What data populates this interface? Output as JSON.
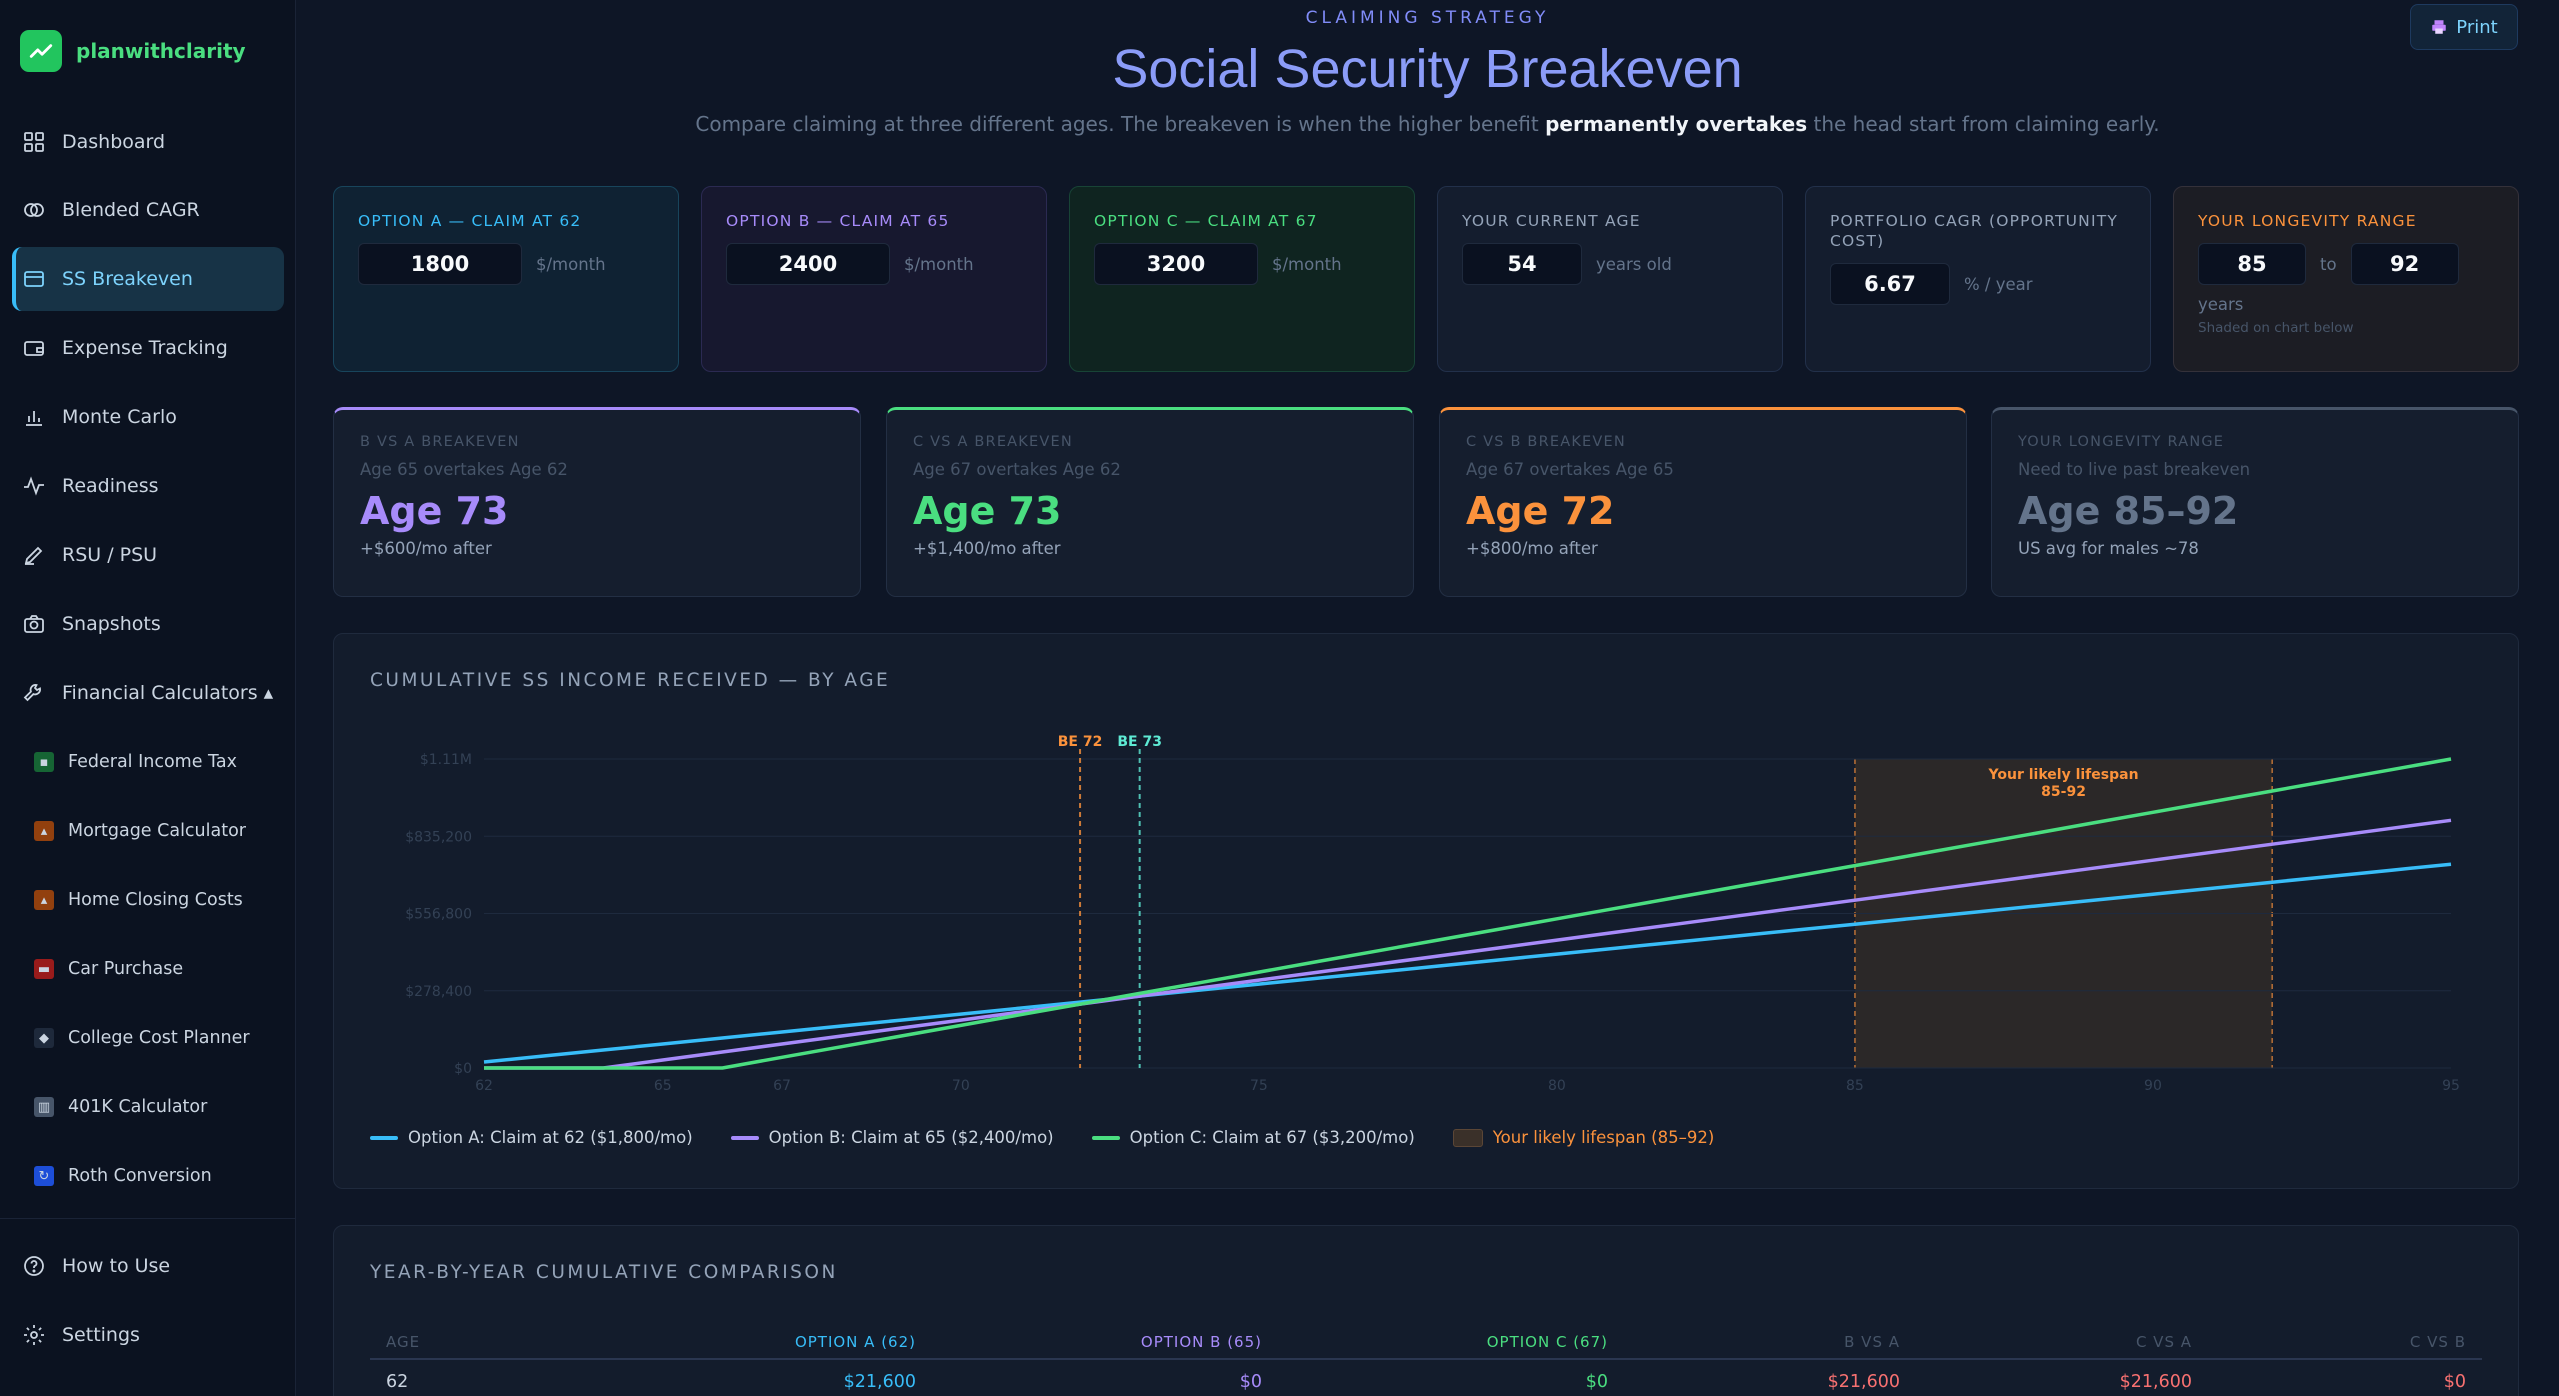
{
  "brand": {
    "name": "planwithclarity"
  },
  "nav": [
    {
      "label": "Dashboard",
      "icon": "grid-icon"
    },
    {
      "label": "Blended CAGR",
      "icon": "circles-icon"
    },
    {
      "label": "SS Breakeven",
      "icon": "card-icon"
    },
    {
      "label": "Expense Tracking",
      "icon": "wallet-icon"
    },
    {
      "label": "Monte Carlo",
      "icon": "bar-chart-icon"
    },
    {
      "label": "Readiness",
      "icon": "activity-icon"
    },
    {
      "label": "RSU / PSU",
      "icon": "pen-icon"
    },
    {
      "label": "Snapshots",
      "icon": "camera-icon"
    },
    {
      "label": "Financial Calculators ▴",
      "icon": "wrench-icon"
    }
  ],
  "subnav": [
    {
      "label": "Federal Income Tax",
      "emoji": "💵",
      "color": "#16a34a"
    },
    {
      "label": "Mortgage Calculator",
      "emoji": "🏠",
      "color": "#b45309"
    },
    {
      "label": "Home Closing Costs",
      "emoji": "🏡",
      "color": "#b45309"
    },
    {
      "label": "Car Purchase",
      "emoji": "🚗",
      "color": "#dc2626"
    },
    {
      "label": "College Cost Planner",
      "emoji": "🎓",
      "color": "#334155"
    },
    {
      "label": "401K Calculator",
      "emoji": "🏦",
      "color": "#64748b"
    },
    {
      "label": "Roth Conversion",
      "emoji": "🔄",
      "color": "#2563eb"
    }
  ],
  "footer_nav": [
    {
      "label": "How to Use",
      "icon": "help-icon"
    },
    {
      "label": "Settings",
      "icon": "settings-icon"
    }
  ],
  "header": {
    "eyebrow": "CLAIMING STRATEGY",
    "title": "Social Security Breakeven",
    "subtitle_pre": "Compare claiming at three different ages. The breakeven is when the higher benefit ",
    "subtitle_bold": "permanently overtakes",
    "subtitle_post": " the head start from claiming early.",
    "print_label": "Print"
  },
  "inputs": {
    "a": {
      "label": "OPTION A — CLAIM AT 62",
      "value": "1800",
      "unit": "$/month",
      "color": "#38bdf8"
    },
    "b": {
      "label": "OPTION B — CLAIM AT 65",
      "value": "2400",
      "unit": "$/month",
      "color": "#a78bfa"
    },
    "c": {
      "label": "OPTION C — CLAIM AT 67",
      "value": "3200",
      "unit": "$/month",
      "color": "#4ade80"
    },
    "age": {
      "label": "YOUR CURRENT AGE",
      "value": "54",
      "unit": "years old"
    },
    "cagr": {
      "label": "PORTFOLIO CAGR (OPPORTUNITY COST)",
      "value": "6.67",
      "unit": "% / year"
    },
    "longevity": {
      "label": "YOUR LONGEVITY RANGE",
      "from": "85",
      "to_label": "to",
      "to": "92",
      "unit": "years",
      "note": "Shaded on chart below",
      "color": "#fb923c"
    }
  },
  "breakevens": [
    {
      "label": "B VS A BREAKEVEN",
      "sub": "Age 65 overtakes Age 62",
      "value": "Age 73",
      "note": "+$600/mo after",
      "color": "#a78bfa"
    },
    {
      "label": "C VS A BREAKEVEN",
      "sub": "Age 67 overtakes Age 62",
      "value": "Age 73",
      "note": "+$1,400/mo after",
      "color": "#4ade80"
    },
    {
      "label": "C VS B BREAKEVEN",
      "sub": "Age 67 overtakes Age 65",
      "value": "Age 72",
      "note": "+$800/mo after",
      "color": "#fb923c"
    },
    {
      "label": "YOUR LONGEVITY RANGE",
      "sub": "Need to live past breakeven",
      "value": "Age 85–92",
      "note": "US avg for males ~78",
      "color": "#64748b"
    }
  ],
  "chart_panel_title": "CUMULATIVE SS INCOME RECEIVED — BY AGE",
  "chart_data": {
    "type": "line",
    "xlim": [
      62,
      95
    ],
    "ylim": [
      0,
      1113600
    ],
    "x_ticks": [
      62,
      65,
      67,
      70,
      75,
      80,
      85,
      90,
      95
    ],
    "y_ticks": [
      0,
      278400,
      556800,
      835200,
      1113600
    ],
    "y_tick_labels": [
      "$0",
      "$278,400",
      "$556,800",
      "$835,200",
      "$1.11M"
    ],
    "series": [
      {
        "name": "Option A: Claim at 62 ($1,800/mo)",
        "claim_age": 62,
        "monthly": 1800,
        "color": "#38bdf8"
      },
      {
        "name": "Option B: Claim at 65 ($2,400/mo)",
        "claim_age": 65,
        "monthly": 2400,
        "color": "#a78bfa"
      },
      {
        "name": "Option C: Claim at 67 ($3,200/mo)",
        "claim_age": 67,
        "monthly": 3200,
        "color": "#4ade80"
      }
    ],
    "x_points": [
      62,
      63,
      64,
      65,
      66,
      67,
      68,
      69,
      70,
      71,
      72,
      73,
      74,
      75,
      76,
      77,
      78,
      79,
      80,
      81,
      82,
      83,
      84,
      85,
      86,
      87,
      88,
      89,
      90,
      91,
      92,
      93,
      94,
      95
    ],
    "breakeven_markers": [
      {
        "label": "BE 72",
        "x": 72,
        "color": "#fb923c"
      },
      {
        "label": "BE 73",
        "x": 73,
        "color": "#5eead4"
      }
    ],
    "lifespan_band": {
      "x0": 85,
      "x1": 92,
      "label_line1": "Your likely lifespan",
      "label_line2": "85-92",
      "color": "#fb923c"
    },
    "shaded_legend": "Your likely lifespan (85–92)"
  },
  "table": {
    "title": "YEAR-BY-YEAR CUMULATIVE COMPARISON",
    "headers": [
      "AGE",
      "OPTION A (62)",
      "OPTION B (65)",
      "OPTION C (67)",
      "B VS A",
      "C VS A",
      "C VS B"
    ],
    "rows": [
      [
        "62",
        "$21,600",
        "$0",
        "$0",
        "$21,600",
        "$21,600",
        "$0"
      ]
    ]
  }
}
